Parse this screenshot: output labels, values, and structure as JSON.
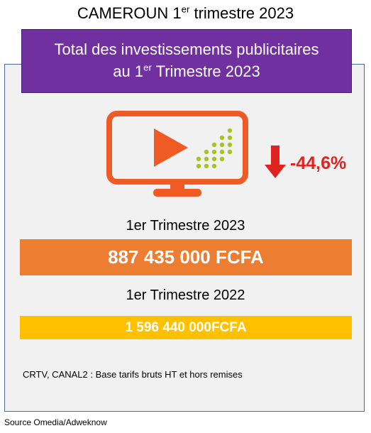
{
  "title": {
    "prefix": "CAMEROUN 1",
    "sup": "er",
    "suffix": " trimestre 2023"
  },
  "banner": {
    "line1": "Total des investissements publicitaires",
    "line2_prefix": "au 1",
    "line2_sup": "er",
    "line2_suffix": " Trimestre 2023"
  },
  "icons": {
    "tv": "tv-play-icon",
    "arrow": "arrow-down-icon"
  },
  "change": "-44,6%",
  "current": {
    "label": "1er Trimestre 2023",
    "value": "887 435 000 FCFA"
  },
  "previous": {
    "label": "1er Trimestre 2022",
    "value": "1 596 440 000FCFA"
  },
  "note": "CRTV, CANAL2 : Base tarifs bruts HT et hors remises",
  "source": "Source Omedia/Adweknow",
  "colors": {
    "banner": "#7030a0",
    "orange": "#ed7d31",
    "yellow": "#ffc000",
    "red": "#e0231f",
    "dots": "#a8c326"
  }
}
